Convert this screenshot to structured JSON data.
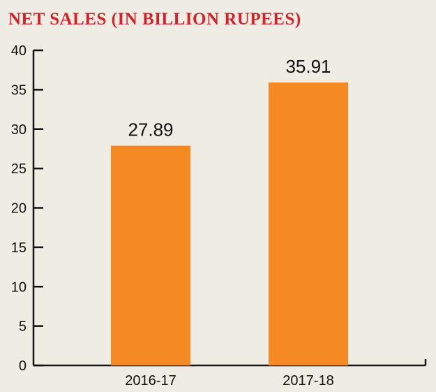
{
  "chart_data": {
    "type": "bar",
    "title": "NET SALES (IN BILLION RUPEES)",
    "categories": [
      "2016-17",
      "2017-18"
    ],
    "values": [
      27.89,
      35.91
    ],
    "data_labels": [
      "27.89",
      "35.91"
    ],
    "ylim": [
      0,
      40
    ],
    "yticks": [
      0,
      5,
      10,
      15,
      20,
      25,
      30,
      35,
      40
    ],
    "xlabel": "",
    "ylabel": "",
    "grid": false,
    "colors": {
      "bar": "#f58a25",
      "title": "#d2232a",
      "axis": "#111111",
      "background": "#efece4"
    }
  }
}
